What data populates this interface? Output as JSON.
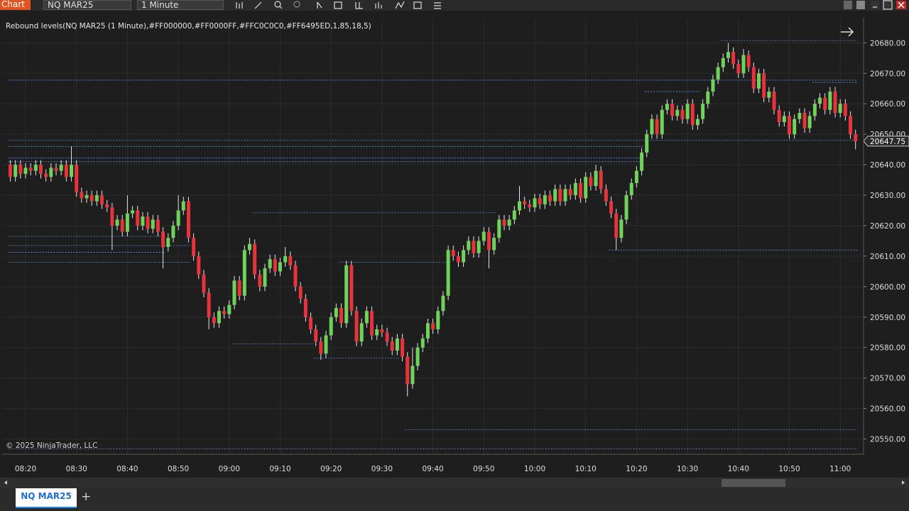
{
  "toolbar": {
    "title": "Chart",
    "instrument": "NQ MAR25",
    "interval": "1 Minute"
  },
  "tabs": {
    "active": "NQ MAR25"
  },
  "chart_data": {
    "type": "candlestick",
    "indicator_label": "Rebound levels(NQ MAR25 (1 Minute),#FF000000,#FF0000FF,#FFC0C0C0,#FF6495ED,1,85,18,5)",
    "copyright": "© 2025 NinjaTrader, LLC",
    "up_color": "#6fd35a",
    "down_color": "#e8323c",
    "level_color": "#6495ed",
    "grid": true,
    "categories": [
      null,
      null,
      null,
      "08:20",
      null,
      null,
      null,
      null,
      null,
      null,
      null,
      null,
      null,
      "08:30",
      null,
      null,
      null,
      null,
      null,
      null,
      null,
      null,
      null,
      "08:40",
      null,
      null,
      null,
      null,
      null,
      null,
      null,
      null,
      null,
      "08:50",
      null,
      null,
      null,
      null,
      null,
      null,
      null,
      null,
      null,
      "09:00",
      null,
      null,
      null,
      null,
      null,
      null,
      null,
      null,
      null,
      "09:10",
      null,
      null,
      null,
      null,
      null,
      null,
      null,
      null,
      null,
      "09:20",
      null,
      null,
      null,
      null,
      null,
      null,
      null,
      null,
      null,
      "09:30",
      null,
      null,
      null,
      null,
      null,
      null,
      null,
      null,
      null,
      "09:40",
      null,
      null,
      null,
      null,
      null,
      null,
      null,
      null,
      null,
      "09:50",
      null,
      null,
      null,
      null,
      null,
      null,
      null,
      null,
      null,
      "10:00",
      null,
      null,
      null,
      null,
      null,
      null,
      null,
      null,
      null,
      "10:10",
      null,
      null,
      null,
      null,
      null,
      null,
      null,
      null,
      null,
      "10:20",
      null,
      null,
      null,
      null,
      null,
      null,
      null,
      null,
      null,
      "10:30",
      null,
      null,
      null,
      null,
      null,
      null,
      null,
      null,
      null,
      "10:40",
      null,
      null,
      null,
      null,
      null,
      null,
      null,
      null,
      null,
      "10:50",
      null,
      null,
      null,
      null,
      null,
      null,
      null,
      null,
      null,
      "11:00",
      null,
      null,
      null
    ],
    "ohlc": [
      [
        20640,
        20641.5,
        20634.5,
        20636
      ],
      [
        20636,
        20641.5,
        20634.5,
        20640
      ],
      [
        20640,
        20641.5,
        20635.5,
        20637
      ],
      [
        20637,
        20640.5,
        20635.5,
        20639
      ],
      [
        20639,
        20640.5,
        20636.5,
        20638
      ],
      [
        20638,
        20641.5,
        20636.5,
        20640
      ],
      [
        20640,
        20641.5,
        20635.5,
        20637
      ],
      [
        20637,
        20638.5,
        20634.5,
        20636
      ],
      [
        20636,
        20640.5,
        20634.5,
        20639
      ],
      [
        20639,
        20640.5,
        20636.5,
        20638
      ],
      [
        20638,
        20641.5,
        20636.5,
        20640
      ],
      [
        20640,
        20641.5,
        20634.5,
        20636
      ],
      [
        20636,
        20646,
        20634.5,
        20640
      ],
      [
        20640,
        20641.5,
        20629.5,
        20631
      ],
      [
        20631,
        20632.5,
        20627.5,
        20629
      ],
      [
        20629,
        20631.5,
        20627.5,
        20630
      ],
      [
        20630,
        20631.5,
        20626.5,
        20628
      ],
      [
        20628,
        20631.5,
        20626.5,
        20630
      ],
      [
        20630,
        20631.5,
        20625.5,
        20627
      ],
      [
        20627,
        20628.5,
        20624.5,
        20626
      ],
      [
        20626,
        20627.5,
        20612,
        20620
      ],
      [
        20620,
        20623.5,
        20618.5,
        20622
      ],
      [
        20622,
        20623.5,
        20616.5,
        20618
      ],
      [
        20618,
        20630,
        20616.5,
        20624
      ],
      [
        20624,
        20626.5,
        20622.5,
        20625
      ],
      [
        20625,
        20626.5,
        20618.5,
        20620
      ],
      [
        20620,
        20624.5,
        20618.5,
        20623
      ],
      [
        20623,
        20624.5,
        20617.5,
        20619
      ],
      [
        20619,
        20623.5,
        20617.5,
        20622
      ],
      [
        20622,
        20623.5,
        20616.5,
        20618
      ],
      [
        20618,
        20619.5,
        20606,
        20613
      ],
      [
        20613,
        20617.5,
        20611.5,
        20616
      ],
      [
        20616,
        20621.5,
        20614.5,
        20620
      ],
      [
        20620,
        20630,
        20618.5,
        20625
      ],
      [
        20625,
        20629.5,
        20623.5,
        20628
      ],
      [
        20628,
        20629.5,
        20614.5,
        20616
      ],
      [
        20616,
        20617.5,
        20608.5,
        20610
      ],
      [
        20610,
        20611.5,
        20602.5,
        20604
      ],
      [
        20604,
        20605.5,
        20596.5,
        20598
      ],
      [
        20598,
        20599.5,
        20586,
        20590
      ],
      [
        20590,
        20591.5,
        20586.5,
        20588
      ],
      [
        20588,
        20593.5,
        20586.5,
        20592
      ],
      [
        20592,
        20593.5,
        20589.5,
        20591
      ],
      [
        20591,
        20595.5,
        20589.5,
        20594
      ],
      [
        20594,
        20603.5,
        20592.5,
        20602
      ],
      [
        20602,
        20603.5,
        20595.5,
        20597
      ],
      [
        20597,
        20613.5,
        20595.5,
        20612
      ],
      [
        20612,
        20616,
        20610.5,
        20614
      ],
      [
        20614,
        20615.5,
        20602.5,
        20604
      ],
      [
        20604,
        20605.5,
        20598.5,
        20600
      ],
      [
        20600,
        20607.5,
        20598.5,
        20606
      ],
      [
        20606,
        20610.5,
        20604.5,
        20609
      ],
      [
        20609,
        20610.5,
        20603.5,
        20605
      ],
      [
        20605,
        20609.5,
        20603.5,
        20608
      ],
      [
        20608,
        20613,
        20606.5,
        20610
      ],
      [
        20610,
        20611.5,
        20605.5,
        20607
      ],
      [
        20607,
        20608.5,
        20598.5,
        20600
      ],
      [
        20600,
        20601.5,
        20594.5,
        20596
      ],
      [
        20596,
        20597.5,
        20588.5,
        20590
      ],
      [
        20590,
        20591.5,
        20584.5,
        20586
      ],
      [
        20586,
        20587.5,
        20580.5,
        20582
      ],
      [
        20582,
        20583.5,
        20576,
        20578
      ],
      [
        20578,
        20585.5,
        20576.5,
        20584
      ],
      [
        20584,
        20591.5,
        20582.5,
        20590
      ],
      [
        20590,
        20594.5,
        20588.5,
        20593
      ],
      [
        20593,
        20594.5,
        20586.5,
        20588
      ],
      [
        20588,
        20608.5,
        20586.5,
        20607
      ],
      [
        20607,
        20608.5,
        20590.5,
        20592
      ],
      [
        20592,
        20593.5,
        20580.5,
        20582
      ],
      [
        20582,
        20589.5,
        20580.5,
        20588
      ],
      [
        20588,
        20593.5,
        20586.5,
        20592
      ],
      [
        20592,
        20593.5,
        20582.5,
        20584
      ],
      [
        20584,
        20587.5,
        20582.5,
        20586
      ],
      [
        20586,
        20587.5,
        20583.5,
        20585
      ],
      [
        20585,
        20586.5,
        20580.5,
        20582
      ],
      [
        20582,
        20583.5,
        20577.5,
        20579
      ],
      [
        20579,
        20584.5,
        20577.5,
        20583
      ],
      [
        20583,
        20584.5,
        20575.5,
        20577
      ],
      [
        20577,
        20578.5,
        20564,
        20568
      ],
      [
        20568,
        20580,
        20566.5,
        20574
      ],
      [
        20574,
        20581.5,
        20572.5,
        20580
      ],
      [
        20580,
        20584.5,
        20578.5,
        20583
      ],
      [
        20583,
        20589.5,
        20581.5,
        20588
      ],
      [
        20588,
        20589.5,
        20584.5,
        20586
      ],
      [
        20586,
        20593.5,
        20584.5,
        20592
      ],
      [
        20592,
        20598.5,
        20590.5,
        20597
      ],
      [
        20597,
        20613.5,
        20595.5,
        20612
      ],
      [
        20612,
        20613.5,
        20608.5,
        20610
      ],
      [
        20610,
        20611.5,
        20606.5,
        20608
      ],
      [
        20608,
        20613.5,
        20606.5,
        20612
      ],
      [
        20612,
        20616.5,
        20610.5,
        20615
      ],
      [
        20615,
        20616.5,
        20609.5,
        20611
      ],
      [
        20611,
        20616.5,
        20609.5,
        20615
      ],
      [
        20615,
        20619.5,
        20613.5,
        20618
      ],
      [
        20618,
        20619.5,
        20606,
        20612
      ],
      [
        20612,
        20617.5,
        20610.5,
        20616
      ],
      [
        20616,
        20623.5,
        20614.5,
        20622
      ],
      [
        20622,
        20623.5,
        20618.5,
        20620
      ],
      [
        20620,
        20623.5,
        20618.5,
        20622
      ],
      [
        20622,
        20626.5,
        20620.5,
        20625
      ],
      [
        20625,
        20633,
        20623.5,
        20628
      ],
      [
        20628,
        20629.5,
        20625.5,
        20627
      ],
      [
        20627,
        20628.5,
        20624.5,
        20626
      ],
      [
        20626,
        20630.5,
        20624.5,
        20629
      ],
      [
        20629,
        20630.5,
        20625.5,
        20627
      ],
      [
        20627,
        20631.5,
        20625.5,
        20630
      ],
      [
        20630,
        20631.5,
        20626.5,
        20628
      ],
      [
        20628,
        20633.5,
        20626.5,
        20632
      ],
      [
        20632,
        20633.5,
        20626.5,
        20628
      ],
      [
        20628,
        20633.5,
        20626.5,
        20632
      ],
      [
        20632,
        20633.5,
        20628.5,
        20630
      ],
      [
        20630,
        20635.5,
        20628.5,
        20634
      ],
      [
        20634,
        20635.5,
        20627.5,
        20629
      ],
      [
        20629,
        20637.5,
        20627.5,
        20636
      ],
      [
        20636,
        20637.5,
        20631.5,
        20633
      ],
      [
        20633,
        20640,
        20631.5,
        20638
      ],
      [
        20638,
        20639.5,
        20630.5,
        20632
      ],
      [
        20632,
        20633.5,
        20626.5,
        20628
      ],
      [
        20628,
        20629.5,
        20622.5,
        20624
      ],
      [
        20624,
        20625.5,
        20612,
        20616
      ],
      [
        20616,
        20623.5,
        20614.5,
        20622
      ],
      [
        20622,
        20631.5,
        20620.5,
        20630
      ],
      [
        20630,
        20635.5,
        20628.5,
        20634
      ],
      [
        20634,
        20639.5,
        20632.5,
        20638
      ],
      [
        20638,
        20645.5,
        20636.5,
        20644
      ],
      [
        20644,
        20651.5,
        20642.5,
        20650
      ],
      [
        20650,
        20656.5,
        20648.5,
        20655
      ],
      [
        20655,
        20656.5,
        20648.5,
        20650
      ],
      [
        20650,
        20659.5,
        20648.5,
        20658
      ],
      [
        20658,
        20661.5,
        20656.5,
        20660
      ],
      [
        20660,
        20661.5,
        20654.5,
        20656
      ],
      [
        20656,
        20659.5,
        20654.5,
        20658
      ],
      [
        20658,
        20659.5,
        20653.5,
        20655
      ],
      [
        20655,
        20661.5,
        20653.5,
        20660
      ],
      [
        20660,
        20661.5,
        20651.5,
        20653
      ],
      [
        20653,
        20656.5,
        20651.5,
        20655
      ],
      [
        20655,
        20661.5,
        20653.5,
        20660
      ],
      [
        20660,
        20665.5,
        20658.5,
        20664
      ],
      [
        20664,
        20669.5,
        20662.5,
        20668
      ],
      [
        20668,
        20673.5,
        20666.5,
        20672
      ],
      [
        20672,
        20676.5,
        20670.5,
        20675
      ],
      [
        20675,
        20680,
        20673.5,
        20677
      ],
      [
        20677,
        20678.5,
        20671.5,
        20673
      ],
      [
        20673,
        20674.5,
        20668.5,
        20670
      ],
      [
        20670,
        20678,
        20668.5,
        20676
      ],
      [
        20676,
        20677.5,
        20670.5,
        20672
      ],
      [
        20672,
        20673.5,
        20663.5,
        20665
      ],
      [
        20665,
        20671.5,
        20663.5,
        20670
      ],
      [
        20670,
        20671.5,
        20660.5,
        20662
      ],
      [
        20662,
        20665.5,
        20660.5,
        20664
      ],
      [
        20664,
        20665.5,
        20656.5,
        20658
      ],
      [
        20658,
        20659.5,
        20652.5,
        20654
      ],
      [
        20654,
        20657.5,
        20652.5,
        20656
      ],
      [
        20656,
        20657.5,
        20648.5,
        20650
      ],
      [
        20650,
        20656.5,
        20648.5,
        20655
      ],
      [
        20655,
        20658.5,
        20653.5,
        20657
      ],
      [
        20657,
        20658.5,
        20650.5,
        20652
      ],
      [
        20652,
        20657.5,
        20650.5,
        20656
      ],
      [
        20656,
        20661.5,
        20654.5,
        20660
      ],
      [
        20660,
        20663.5,
        20658.5,
        20662
      ],
      [
        20662,
        20663.5,
        20656.5,
        20658
      ],
      [
        20658,
        20665.5,
        20656.5,
        20664
      ],
      [
        20664,
        20665.5,
        20655.5,
        20657
      ],
      [
        20657,
        20661.5,
        20655.5,
        20660
      ],
      [
        20660,
        20661.5,
        20654.5,
        20656
      ],
      [
        20656,
        20657.5,
        20648.5,
        20650
      ],
      [
        20650,
        20651.5,
        20645,
        20647.75
      ]
    ],
    "levels": [
      {
        "price": 20546.75,
        "start": 0,
        "end": 166
      },
      {
        "price": 20667.75,
        "start": 0,
        "end": 166
      },
      {
        "price": 20680.75,
        "start": 140,
        "end": 166
      },
      {
        "price": 20664,
        "start": 125,
        "end": 135
      },
      {
        "price": 20667,
        "start": 158,
        "end": 166
      },
      {
        "price": 20648,
        "start": 0,
        "end": 166
      },
      {
        "price": 20646,
        "start": 0,
        "end": 124
      },
      {
        "price": 20642.25,
        "start": 0,
        "end": 124
      },
      {
        "price": 20641,
        "start": 0,
        "end": 124
      },
      {
        "price": 20624.25,
        "start": 48,
        "end": 95
      },
      {
        "price": 20612,
        "start": 118,
        "end": 166
      },
      {
        "price": 20616.5,
        "start": 0,
        "end": 30
      },
      {
        "price": 20613.5,
        "start": 0,
        "end": 35
      },
      {
        "price": 20611.25,
        "start": 0,
        "end": 30
      },
      {
        "price": 20608,
        "start": 0,
        "end": 35
      },
      {
        "price": 20608,
        "start": 65,
        "end": 86
      },
      {
        "price": 20581.25,
        "start": 44,
        "end": 59
      },
      {
        "price": 20576.5,
        "start": 60,
        "end": 76
      },
      {
        "price": 20553,
        "start": 78,
        "end": 166
      }
    ],
    "last_price": 20647.75,
    "ylim": [
      20545,
      20688
    ],
    "yticks": [
      {
        "value": 20550,
        "label": "20550.00"
      },
      {
        "value": 20560,
        "label": "20560.00"
      },
      {
        "value": 20570,
        "label": "20570.00"
      },
      {
        "value": 20580,
        "label": "20580.00"
      },
      {
        "value": 20590,
        "label": "20590.00"
      },
      {
        "value": 20600,
        "label": "20600.00"
      },
      {
        "value": 20610,
        "label": "20610.00"
      },
      {
        "value": 20620,
        "label": "20620.00"
      },
      {
        "value": 20630,
        "label": "20630.00"
      },
      {
        "value": 20640,
        "label": "20640.00"
      },
      {
        "value": 20650,
        "label": "20650.00"
      },
      {
        "value": 20660,
        "label": "20660.00"
      },
      {
        "value": 20670,
        "label": "20670.00"
      },
      {
        "value": 20680,
        "label": "20680.00"
      }
    ]
  }
}
